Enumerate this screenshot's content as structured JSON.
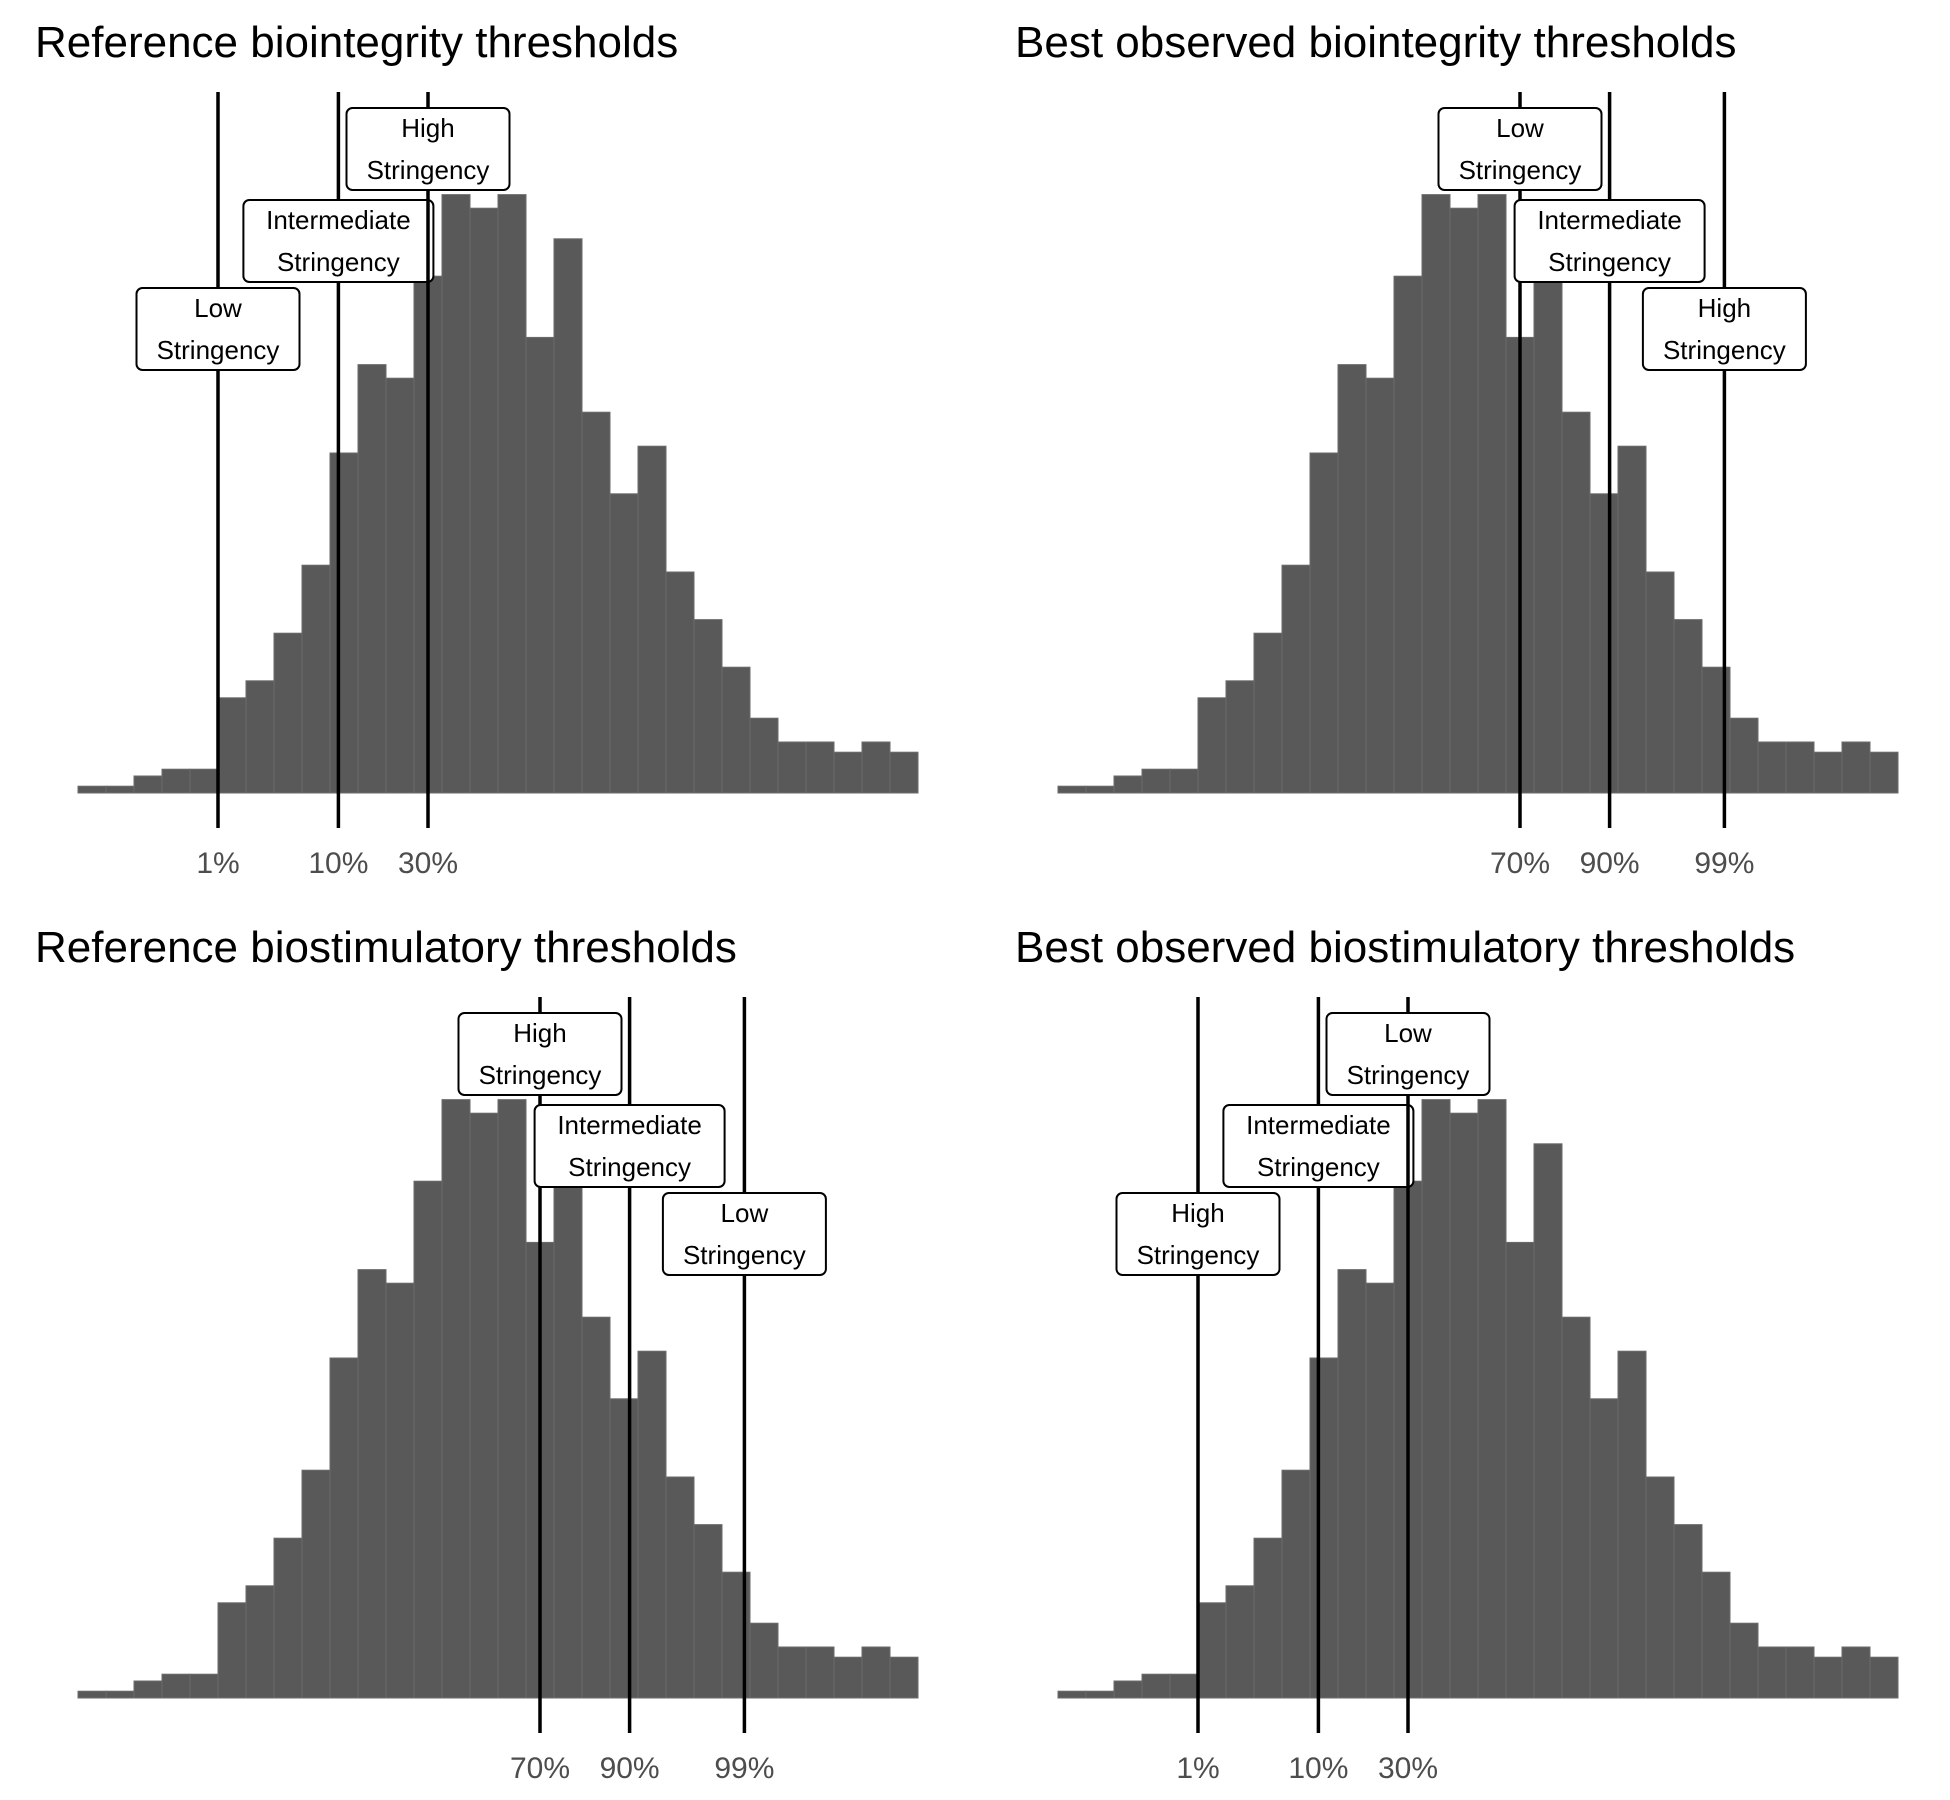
{
  "colors": {
    "bar_fill": "#595959",
    "bar_edge": "#6b6b6b",
    "line": "#000000",
    "tick_text": "#4d4d4d",
    "background": "#ffffff"
  },
  "chart_data": [
    {
      "type": "bar",
      "title": "Reference biointegrity thresholds",
      "xlabel": "",
      "ylabel": "",
      "bins": 30,
      "values": [
        2,
        2,
        5,
        7,
        7,
        28,
        33,
        47,
        67,
        100,
        126,
        122,
        152,
        176,
        172,
        176,
        134,
        163,
        112,
        88,
        102,
        65,
        51,
        37,
        22,
        15,
        15,
        12,
        15,
        12
      ],
      "thresholds": [
        {
          "bin": 5,
          "percentile": "1%",
          "label": [
            "Low",
            "Stringency"
          ]
        },
        {
          "bin": 9.3,
          "percentile": "10%",
          "label": [
            "Intermediate",
            "Stringency"
          ]
        },
        {
          "bin": 12.5,
          "percentile": "30%",
          "label": [
            "High",
            "Stringency"
          ]
        }
      ]
    },
    {
      "type": "bar",
      "title": "Best observed biointegrity thresholds",
      "xlabel": "",
      "ylabel": "",
      "bins": 30,
      "values": [
        2,
        2,
        5,
        7,
        7,
        28,
        33,
        47,
        67,
        100,
        126,
        122,
        152,
        176,
        172,
        176,
        134,
        163,
        112,
        88,
        102,
        65,
        51,
        37,
        22,
        15,
        15,
        12,
        15,
        12
      ],
      "thresholds": [
        {
          "bin": 16.5,
          "percentile": "70%",
          "label": [
            "Low",
            "Stringency"
          ]
        },
        {
          "bin": 19.7,
          "percentile": "90%",
          "label": [
            "Intermediate",
            "Stringency"
          ]
        },
        {
          "bin": 23.8,
          "percentile": "99%",
          "label": [
            "High",
            "Stringency"
          ]
        }
      ]
    },
    {
      "type": "bar",
      "title": "Reference biostimulatory thresholds",
      "xlabel": "",
      "ylabel": "",
      "bins": 30,
      "values": [
        2,
        2,
        5,
        7,
        7,
        28,
        33,
        47,
        67,
        100,
        126,
        122,
        152,
        176,
        172,
        176,
        134,
        163,
        112,
        88,
        102,
        65,
        51,
        37,
        22,
        15,
        15,
        12,
        15,
        12
      ],
      "thresholds": [
        {
          "bin": 16.5,
          "percentile": "70%",
          "label": [
            "High",
            "Stringency"
          ]
        },
        {
          "bin": 19.7,
          "percentile": "90%",
          "label": [
            "Intermediate",
            "Stringency"
          ]
        },
        {
          "bin": 23.8,
          "percentile": "99%",
          "label": [
            "Low",
            "Stringency"
          ]
        }
      ]
    },
    {
      "type": "bar",
      "title": "Best observed biostimulatory thresholds",
      "xlabel": "",
      "ylabel": "",
      "bins": 30,
      "values": [
        2,
        2,
        5,
        7,
        7,
        28,
        33,
        47,
        67,
        100,
        126,
        122,
        152,
        176,
        172,
        176,
        134,
        163,
        112,
        88,
        102,
        65,
        51,
        37,
        22,
        15,
        15,
        12,
        15,
        12
      ],
      "thresholds": [
        {
          "bin": 5,
          "percentile": "1%",
          "label": [
            "High",
            "Stringency"
          ]
        },
        {
          "bin": 9.3,
          "percentile": "10%",
          "label": [
            "Intermediate",
            "Stringency"
          ]
        },
        {
          "bin": 12.5,
          "percentile": "30%",
          "label": [
            "Low",
            "Stringency"
          ]
        }
      ]
    }
  ]
}
